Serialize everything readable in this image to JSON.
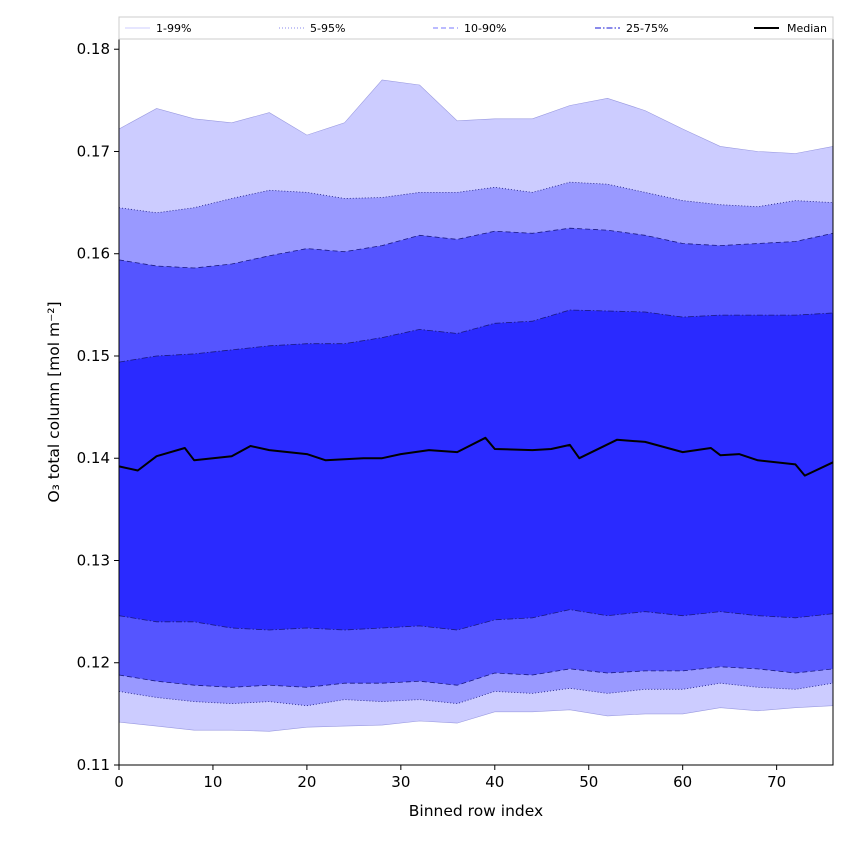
{
  "chart_data": {
    "type": "area",
    "title": "",
    "xlabel": "Binned row index",
    "ylabel": "O₃ total column [mol m⁻²]",
    "xlim": [
      0,
      76
    ],
    "ylim": [
      0.11,
      0.181
    ],
    "xticks": [
      0,
      10,
      20,
      30,
      40,
      50,
      60,
      70
    ],
    "yticks": [
      0.11,
      0.12,
      0.13,
      0.14,
      0.15,
      0.16,
      0.17,
      0.18
    ],
    "xtick_labels": [
      "0",
      "10",
      "20",
      "30",
      "40",
      "50",
      "60",
      "70"
    ],
    "ytick_labels": [
      "0.11",
      "0.12",
      "0.13",
      "0.14",
      "0.15",
      "0.16",
      "0.17",
      "0.18"
    ],
    "legend_position": "top",
    "x": [
      0,
      4,
      8,
      12,
      16,
      20,
      24,
      28,
      32,
      36,
      40,
      44,
      48,
      52,
      56,
      60,
      64,
      68,
      72,
      76
    ],
    "bands": [
      {
        "name": "1-99%",
        "fill": "#ccccff",
        "line_style": "solid",
        "lower": [
          0.1142,
          0.1138,
          0.1134,
          0.1134,
          0.1133,
          0.1137,
          0.1138,
          0.1139,
          0.1143,
          0.1141,
          0.1152,
          0.1152,
          0.1154,
          0.1148,
          0.115,
          0.115,
          0.1156,
          0.1153,
          0.1156,
          0.1158
        ],
        "upper": [
          0.1722,
          0.1742,
          0.1732,
          0.1728,
          0.1738,
          0.1716,
          0.1728,
          0.177,
          0.1765,
          0.173,
          0.1732,
          0.1732,
          0.1745,
          0.1752,
          0.174,
          0.1722,
          0.1705,
          0.17,
          0.1698,
          0.1705
        ]
      },
      {
        "name": "5-95%",
        "fill": "#9999ff",
        "line_style": "dotted",
        "lower": [
          0.1172,
          0.1166,
          0.1162,
          0.116,
          0.1162,
          0.1158,
          0.1164,
          0.1162,
          0.1164,
          0.116,
          0.1172,
          0.117,
          0.1175,
          0.117,
          0.1174,
          0.1174,
          0.118,
          0.1176,
          0.1174,
          0.118
        ],
        "upper": [
          0.1645,
          0.164,
          0.1645,
          0.1654,
          0.1662,
          0.166,
          0.1654,
          0.1655,
          0.166,
          0.166,
          0.1665,
          0.166,
          0.167,
          0.1668,
          0.166,
          0.1652,
          0.1648,
          0.1646,
          0.1652,
          0.165
        ]
      },
      {
        "name": "10-90%",
        "fill": "#5555ff",
        "line_style": "dashed",
        "lower": [
          0.1188,
          0.1182,
          0.1178,
          0.1176,
          0.1178,
          0.1176,
          0.118,
          0.118,
          0.1182,
          0.1178,
          0.119,
          0.1188,
          0.1194,
          0.119,
          0.1192,
          0.1192,
          0.1196,
          0.1194,
          0.119,
          0.1194
        ],
        "upper": [
          0.1594,
          0.1588,
          0.1586,
          0.159,
          0.1598,
          0.1605,
          0.1602,
          0.1608,
          0.1618,
          0.1614,
          0.1622,
          0.162,
          0.1625,
          0.1623,
          0.1618,
          0.161,
          0.1608,
          0.161,
          0.1612,
          0.162
        ]
      },
      {
        "name": "25-75%",
        "fill": "#2a2aff",
        "line_style": "dashdot",
        "lower": [
          0.1246,
          0.124,
          0.124,
          0.1234,
          0.1232,
          0.1234,
          0.1232,
          0.1234,
          0.1236,
          0.1232,
          0.1242,
          0.1244,
          0.1252,
          0.1246,
          0.125,
          0.1246,
          0.125,
          0.1246,
          0.1244,
          0.1248
        ],
        "upper": [
          0.1494,
          0.15,
          0.1502,
          0.1506,
          0.151,
          0.1512,
          0.1512,
          0.1518,
          0.1526,
          0.1522,
          0.1532,
          0.1534,
          0.1545,
          0.1544,
          0.1543,
          0.1538,
          0.154,
          0.154,
          0.154,
          0.1542
        ]
      }
    ],
    "median": {
      "name": "Median",
      "color": "#000000",
      "x": [
        0,
        2,
        4,
        7,
        8,
        12,
        14,
        16,
        20,
        22,
        26,
        28,
        30,
        33,
        36,
        39,
        40,
        44,
        46,
        48,
        49,
        53,
        56,
        60,
        63,
        64,
        66,
        68,
        72,
        73,
        76
      ],
      "values": [
        0.1392,
        0.1388,
        0.1402,
        0.141,
        0.1398,
        0.1402,
        0.1412,
        0.1408,
        0.1404,
        0.1398,
        0.14,
        0.14,
        0.1404,
        0.1408,
        0.1406,
        0.142,
        0.1409,
        0.1408,
        0.1409,
        0.1413,
        0.14,
        0.1418,
        0.1416,
        0.1406,
        0.141,
        0.1403,
        0.1404,
        0.1398,
        0.1394,
        0.1383,
        0.1396
      ]
    }
  }
}
